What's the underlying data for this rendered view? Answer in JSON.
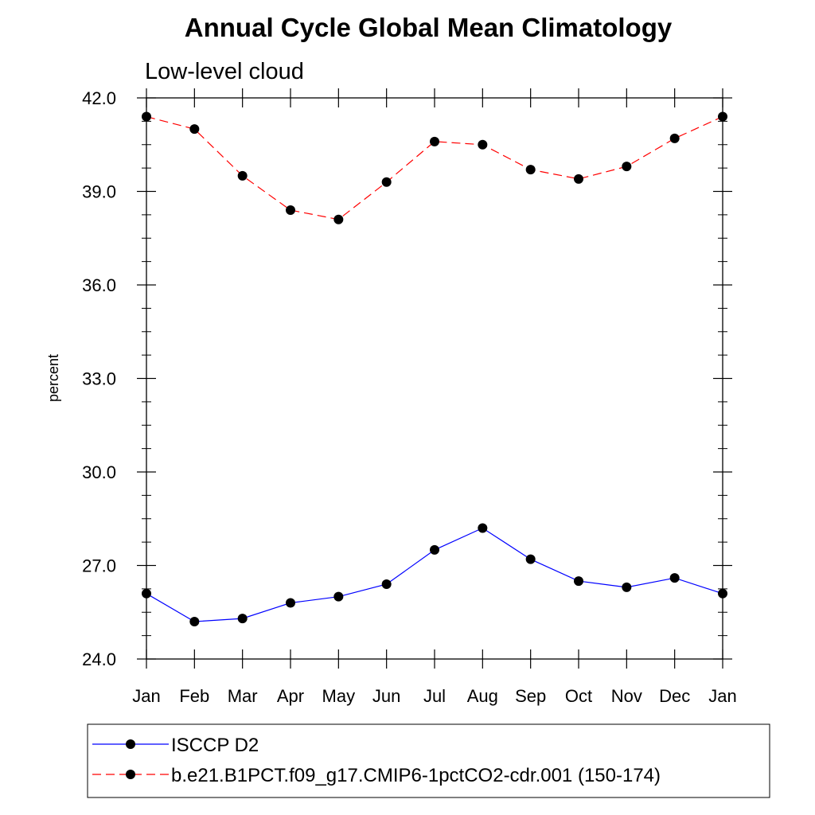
{
  "chart_data": {
    "type": "line",
    "title": "Annual Cycle Global Mean Climatology",
    "subtitle": "Low-level cloud",
    "xlabel": "",
    "ylabel": "percent",
    "categories": [
      "Jan",
      "Feb",
      "Mar",
      "Apr",
      "May",
      "Jun",
      "Jul",
      "Aug",
      "Sep",
      "Oct",
      "Nov",
      "Dec",
      "Jan"
    ],
    "ylim": [
      24.0,
      42.0
    ],
    "yticks": [
      "24.0",
      "27.0",
      "30.0",
      "33.0",
      "36.0",
      "39.0",
      "42.0"
    ],
    "ytick_values": [
      24,
      27,
      30,
      33,
      36,
      39,
      42
    ],
    "grid": false,
    "legend_position": "bottom",
    "series": [
      {
        "name": "ISCCP D2",
        "color": "#0000ff",
        "line_style": "solid",
        "marker": "filled-circle",
        "values": [
          26.1,
          25.2,
          25.3,
          25.8,
          26.0,
          26.4,
          27.5,
          28.2,
          27.2,
          26.5,
          26.3,
          26.6,
          26.1
        ]
      },
      {
        "name": "b.e21.B1PCT.f09_g17.CMIP6-1pctCO2-cdr.001 (150-174)",
        "color": "#ff0000",
        "line_style": "dashed",
        "marker": "filled-circle",
        "values": [
          41.4,
          41.0,
          39.5,
          38.4,
          38.1,
          39.3,
          40.6,
          40.5,
          39.7,
          39.4,
          39.8,
          40.7,
          41.4
        ]
      }
    ]
  }
}
